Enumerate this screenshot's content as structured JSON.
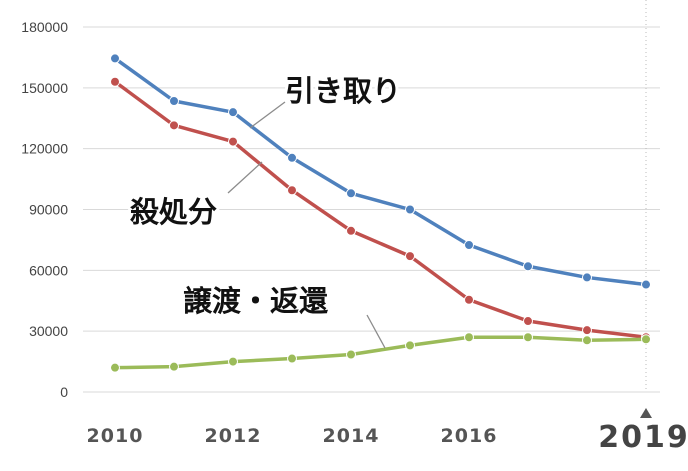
{
  "chart_data": {
    "type": "line",
    "x": [
      2010,
      2011,
      2012,
      2013,
      2014,
      2015,
      2016,
      2017,
      2018,
      2019
    ],
    "xtick_labels": [
      "2010",
      "2012",
      "2014",
      "2016"
    ],
    "highlight_label": "2019",
    "ylim": [
      0,
      180000
    ],
    "yticks": [
      "0",
      "30000",
      "60000",
      "90000",
      "120000",
      "150000",
      "180000"
    ],
    "grid": true,
    "series": [
      {
        "name": "引き取り",
        "color": "#4f81bd",
        "values": [
          164500,
          143500,
          138000,
          115500,
          98000,
          90000,
          72500,
          62000,
          56500,
          53000
        ]
      },
      {
        "name": "殺処分",
        "color": "#c0504d",
        "values": [
          153000,
          131500,
          123500,
          99500,
          79500,
          67000,
          45500,
          35000,
          30500,
          27000
        ]
      },
      {
        "name": "譲渡・返還",
        "color": "#9bbb59",
        "values": [
          12000,
          12500,
          15000,
          16500,
          18500,
          23000,
          27000,
          27000,
          25500,
          26000
        ]
      }
    ]
  }
}
